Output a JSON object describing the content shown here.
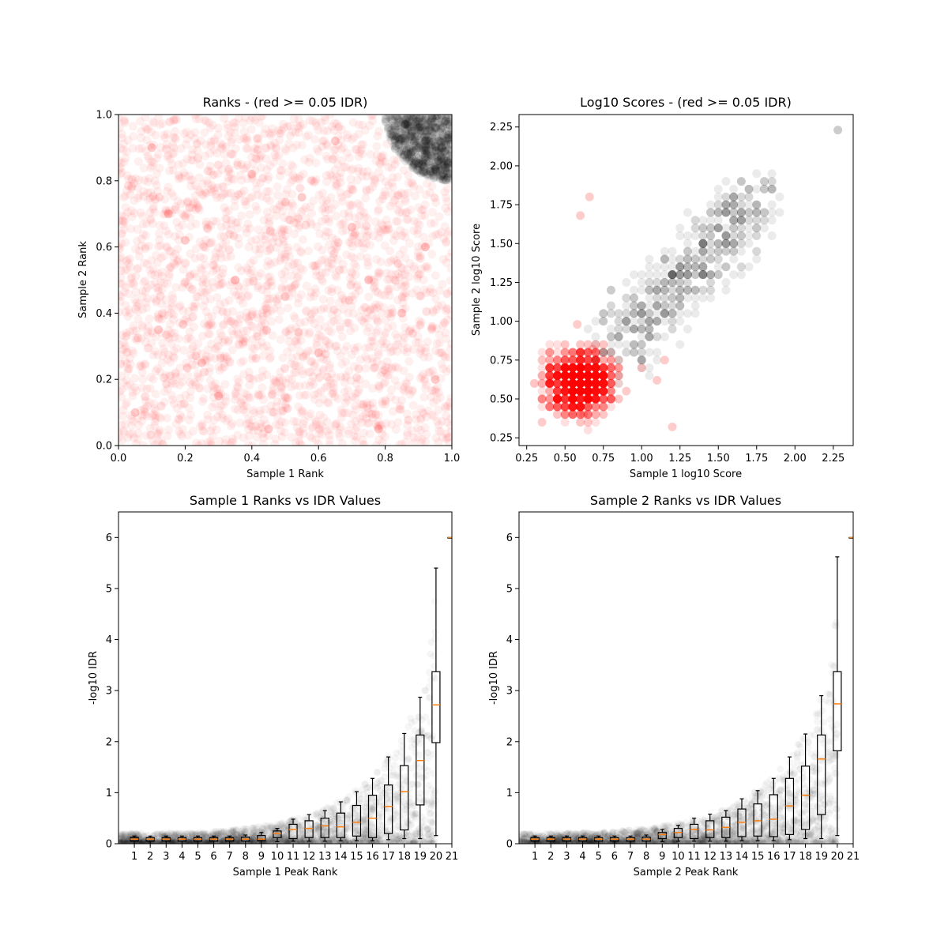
{
  "figure": {
    "background": "#ffffff"
  },
  "chart_data": [
    {
      "id": "ranks",
      "type": "scatter",
      "title": "Ranks - (red >= 0.05 IDR)",
      "xlabel": "Sample 1 Rank",
      "ylabel": "Sample 2 Rank",
      "xlim": [
        0,
        1
      ],
      "ylim": [
        0,
        1
      ],
      "xticks": [
        0.0,
        0.2,
        0.4,
        0.6,
        0.8,
        1.0
      ],
      "yticks": [
        0.0,
        0.2,
        0.4,
        0.6,
        0.8,
        1.0
      ],
      "tick_format": "1",
      "grid": false,
      "colors": {
        "pass": "#000000",
        "fail": "#ff0000"
      },
      "series": [
        {
          "color": "#ff0000",
          "density": "uniform over [0,1]x[0,1] excluding the high-rank corner",
          "points": [
            [
              0.05,
              0.1
            ],
            [
              0.12,
              0.35
            ],
            [
              0.2,
              0.62
            ],
            [
              0.3,
              0.15
            ],
            [
              0.4,
              0.82
            ],
            [
              0.5,
              0.45
            ],
            [
              0.6,
              0.28
            ],
            [
              0.7,
              0.66
            ],
            [
              0.78,
              0.05
            ],
            [
              0.85,
              0.4
            ],
            [
              0.92,
              0.6
            ],
            [
              0.1,
              0.9
            ],
            [
              0.35,
              0.5
            ],
            [
              0.55,
              0.75
            ],
            [
              0.65,
              0.92
            ],
            [
              0.25,
              0.25
            ],
            [
              0.45,
              0.05
            ],
            [
              0.75,
              0.5
            ],
            [
              0.95,
              0.2
            ],
            [
              0.15,
              0.7
            ]
          ]
        },
        {
          "color": "#000000",
          "density": "dense cluster in the corner where both ranks exceed about 0.82",
          "points": [
            [
              0.92,
              0.92
            ],
            [
              0.95,
              0.96
            ],
            [
              0.98,
              0.98
            ],
            [
              0.88,
              0.95
            ],
            [
              0.96,
              0.86
            ],
            [
              0.9,
              0.9
            ],
            [
              0.99,
              0.93
            ],
            [
              0.94,
              0.99
            ],
            [
              0.86,
              0.97
            ],
            [
              0.97,
              0.9
            ],
            [
              0.91,
              0.85
            ],
            [
              0.84,
              0.93
            ]
          ]
        }
      ]
    },
    {
      "id": "scores",
      "type": "scatter",
      "title": "Log10 Scores - (red >= 0.05 IDR)",
      "xlabel": "Sample 1 log10 Score",
      "ylabel": "Sample 2 log10 Score",
      "xlim": [
        0.2,
        2.38
      ],
      "ylim": [
        0.2,
        2.33
      ],
      "xticks": [
        0.25,
        0.5,
        0.75,
        1.0,
        1.25,
        1.5,
        1.75,
        2.0,
        2.25
      ],
      "yticks": [
        0.25,
        0.5,
        0.75,
        1.0,
        1.25,
        1.5,
        1.75,
        2.0,
        2.25
      ],
      "tick_format": "2",
      "grid": false,
      "colors": {
        "pass": "#000000",
        "fail": "#ff0000"
      },
      "series": [
        {
          "color": "#ff0000",
          "density": "dense block roughly x 0.4-0.8, y 0.35-0.8, thinning toward 1.1",
          "points": [
            [
              0.5,
              0.55
            ],
            [
              0.6,
              0.6
            ],
            [
              0.65,
              0.52
            ],
            [
              0.55,
              0.7
            ],
            [
              0.7,
              0.58
            ],
            [
              0.45,
              0.45
            ],
            [
              0.75,
              0.65
            ],
            [
              0.4,
              0.62
            ],
            [
              0.62,
              0.4
            ],
            [
              0.8,
              0.75
            ],
            [
              0.9,
              0.55
            ],
            [
              1.0,
              0.7
            ],
            [
              0.35,
              0.35
            ],
            [
              0.68,
              0.82
            ],
            [
              1.1,
              0.62
            ],
            [
              0.58,
              0.98
            ],
            [
              0.66,
              1.8
            ],
            [
              0.6,
              1.68
            ],
            [
              1.2,
              0.32
            ],
            [
              1.15,
              0.75
            ]
          ]
        },
        {
          "color": "#000000",
          "density": "grey band from about (0.75,0.75) up to (1.8,1.9) with an outlier near (2.28,2.23)",
          "points": [
            [
              0.85,
              0.9
            ],
            [
              0.9,
              1.0
            ],
            [
              1.0,
              1.1
            ],
            [
              0.95,
              0.85
            ],
            [
              1.05,
              1.2
            ],
            [
              1.1,
              1.0
            ],
            [
              1.2,
              1.3
            ],
            [
              1.3,
              1.4
            ],
            [
              1.4,
              1.5
            ],
            [
              1.5,
              1.6
            ],
            [
              1.6,
              1.75
            ],
            [
              1.7,
              1.85
            ],
            [
              1.8,
              1.9
            ],
            [
              1.25,
              1.1
            ],
            [
              0.8,
              1.2
            ],
            [
              1.35,
              1.2
            ],
            [
              1.55,
              1.45
            ],
            [
              1.45,
              1.3
            ],
            [
              1.65,
              1.65
            ],
            [
              2.28,
              2.23
            ]
          ]
        }
      ]
    },
    {
      "id": "s1_idr",
      "type": "box",
      "title": "Sample 1 Ranks vs IDR Values",
      "xlabel": "Sample 1 Peak Rank",
      "ylabel": "-log10 IDR",
      "xlim": [
        0.0,
        21.0
      ],
      "ylim": [
        0,
        6.5
      ],
      "xticks": [
        1,
        2,
        3,
        4,
        5,
        6,
        7,
        8,
        9,
        10,
        11,
        12,
        13,
        14,
        15,
        16,
        17,
        18,
        19,
        20,
        21
      ],
      "yticks": [
        0,
        1,
        2,
        3,
        4,
        5,
        6
      ],
      "tick_format": "0",
      "grid": false,
      "colors": {
        "box": "#000000",
        "median": "#ff7f0e",
        "scatter": "#000000"
      },
      "scatter_envelope": [
        [
          0.0,
          0.2
        ],
        [
          5,
          0.22
        ],
        [
          8,
          0.3
        ],
        [
          10,
          0.4
        ],
        [
          12,
          0.55
        ],
        [
          14,
          0.85
        ],
        [
          16,
          1.3
        ],
        [
          17,
          1.7
        ],
        [
          18,
          2.2
        ],
        [
          19,
          2.9
        ],
        [
          19.5,
          3.6
        ],
        [
          20,
          5.0
        ],
        [
          20,
          6.0
        ]
      ],
      "boxes": [
        {
          "x": 1,
          "q1": 0.05,
          "median": 0.09,
          "q3": 0.12,
          "low": 0.0,
          "high": 0.15
        },
        {
          "x": 2,
          "q1": 0.05,
          "median": 0.09,
          "q3": 0.12,
          "low": 0.0,
          "high": 0.15
        },
        {
          "x": 3,
          "q1": 0.05,
          "median": 0.09,
          "q3": 0.12,
          "low": 0.0,
          "high": 0.15
        },
        {
          "x": 4,
          "q1": 0.05,
          "median": 0.09,
          "q3": 0.12,
          "low": 0.0,
          "high": 0.15
        },
        {
          "x": 5,
          "q1": 0.05,
          "median": 0.09,
          "q3": 0.12,
          "low": 0.0,
          "high": 0.15
        },
        {
          "x": 6,
          "q1": 0.05,
          "median": 0.09,
          "q3": 0.12,
          "low": 0.0,
          "high": 0.15
        },
        {
          "x": 7,
          "q1": 0.05,
          "median": 0.09,
          "q3": 0.12,
          "low": 0.0,
          "high": 0.15
        },
        {
          "x": 8,
          "q1": 0.05,
          "median": 0.09,
          "q3": 0.13,
          "low": 0.0,
          "high": 0.17
        },
        {
          "x": 9,
          "q1": 0.06,
          "median": 0.09,
          "q3": 0.16,
          "low": 0.0,
          "high": 0.22
        },
        {
          "x": 10,
          "q1": 0.12,
          "median": 0.2,
          "q3": 0.25,
          "low": 0.04,
          "high": 0.3
        },
        {
          "x": 11,
          "q1": 0.1,
          "median": 0.28,
          "q3": 0.38,
          "low": 0.05,
          "high": 0.48
        },
        {
          "x": 12,
          "q1": 0.12,
          "median": 0.3,
          "q3": 0.45,
          "low": 0.05,
          "high": 0.57
        },
        {
          "x": 13,
          "q1": 0.12,
          "median": 0.35,
          "q3": 0.5,
          "low": 0.05,
          "high": 0.65
        },
        {
          "x": 14,
          "q1": 0.12,
          "median": 0.33,
          "q3": 0.6,
          "low": 0.06,
          "high": 0.82
        },
        {
          "x": 15,
          "q1": 0.15,
          "median": 0.42,
          "q3": 0.75,
          "low": 0.06,
          "high": 1.02
        },
        {
          "x": 16,
          "q1": 0.12,
          "median": 0.5,
          "q3": 0.95,
          "low": 0.06,
          "high": 1.28
        },
        {
          "x": 17,
          "q1": 0.2,
          "median": 0.73,
          "q3": 1.15,
          "low": 0.08,
          "high": 1.7
        },
        {
          "x": 18,
          "q1": 0.27,
          "median": 1.02,
          "q3": 1.53,
          "low": 0.1,
          "high": 2.16
        },
        {
          "x": 19,
          "q1": 0.76,
          "median": 1.63,
          "q3": 2.13,
          "low": 0.1,
          "high": 2.87
        },
        {
          "x": 20,
          "q1": 1.98,
          "median": 2.72,
          "q3": 3.37,
          "low": 0.16,
          "high": 5.4
        },
        {
          "x": 21,
          "q1": 6.0,
          "median": 6.0,
          "q3": 6.0,
          "low": 6.0,
          "high": 6.0
        }
      ]
    },
    {
      "id": "s2_idr",
      "type": "box",
      "title": "Sample 2 Ranks vs IDR Values",
      "xlabel": "Sample 2 Peak Rank",
      "ylabel": "-log10 IDR",
      "xlim": [
        0.0,
        21.0
      ],
      "ylim": [
        0,
        6.5
      ],
      "xticks": [
        1,
        2,
        3,
        4,
        5,
        6,
        7,
        8,
        9,
        10,
        11,
        12,
        13,
        14,
        15,
        16,
        17,
        18,
        19,
        20,
        21
      ],
      "yticks": [
        0,
        1,
        2,
        3,
        4,
        5,
        6
      ],
      "tick_format": "0",
      "grid": false,
      "colors": {
        "box": "#000000",
        "median": "#ff7f0e",
        "scatter": "#000000"
      },
      "scatter_envelope": [
        [
          0.0,
          0.2
        ],
        [
          5,
          0.22
        ],
        [
          8,
          0.3
        ],
        [
          10,
          0.4
        ],
        [
          12,
          0.55
        ],
        [
          14,
          0.85
        ],
        [
          16,
          1.3
        ],
        [
          17,
          1.7
        ],
        [
          18,
          2.2
        ],
        [
          19,
          2.9
        ],
        [
          19.5,
          3.6
        ],
        [
          20,
          5.0
        ],
        [
          20,
          6.0
        ]
      ],
      "boxes": [
        {
          "x": 1,
          "q1": 0.05,
          "median": 0.09,
          "q3": 0.12,
          "low": 0.0,
          "high": 0.15
        },
        {
          "x": 2,
          "q1": 0.05,
          "median": 0.09,
          "q3": 0.12,
          "low": 0.0,
          "high": 0.15
        },
        {
          "x": 3,
          "q1": 0.05,
          "median": 0.09,
          "q3": 0.12,
          "low": 0.0,
          "high": 0.15
        },
        {
          "x": 4,
          "q1": 0.05,
          "median": 0.09,
          "q3": 0.12,
          "low": 0.0,
          "high": 0.15
        },
        {
          "x": 5,
          "q1": 0.05,
          "median": 0.09,
          "q3": 0.12,
          "low": 0.0,
          "high": 0.15
        },
        {
          "x": 6,
          "q1": 0.05,
          "median": 0.09,
          "q3": 0.12,
          "low": 0.0,
          "high": 0.15
        },
        {
          "x": 7,
          "q1": 0.05,
          "median": 0.09,
          "q3": 0.12,
          "low": 0.0,
          "high": 0.15
        },
        {
          "x": 8,
          "q1": 0.05,
          "median": 0.09,
          "q3": 0.13,
          "low": 0.0,
          "high": 0.17
        },
        {
          "x": 9,
          "q1": 0.1,
          "median": 0.18,
          "q3": 0.22,
          "low": 0.04,
          "high": 0.28
        },
        {
          "x": 10,
          "q1": 0.12,
          "median": 0.22,
          "q3": 0.3,
          "low": 0.05,
          "high": 0.36
        },
        {
          "x": 11,
          "q1": 0.1,
          "median": 0.28,
          "q3": 0.38,
          "low": 0.05,
          "high": 0.5
        },
        {
          "x": 12,
          "q1": 0.12,
          "median": 0.27,
          "q3": 0.45,
          "low": 0.05,
          "high": 0.58
        },
        {
          "x": 13,
          "q1": 0.12,
          "median": 0.32,
          "q3": 0.52,
          "low": 0.05,
          "high": 0.65
        },
        {
          "x": 14,
          "q1": 0.14,
          "median": 0.42,
          "q3": 0.68,
          "low": 0.06,
          "high": 0.88
        },
        {
          "x": 15,
          "q1": 0.15,
          "median": 0.45,
          "q3": 0.78,
          "low": 0.06,
          "high": 1.04
        },
        {
          "x": 16,
          "q1": 0.14,
          "median": 0.48,
          "q3": 0.96,
          "low": 0.06,
          "high": 1.28
        },
        {
          "x": 17,
          "q1": 0.18,
          "median": 0.74,
          "q3": 1.28,
          "low": 0.08,
          "high": 1.7
        },
        {
          "x": 18,
          "q1": 0.28,
          "median": 0.95,
          "q3": 1.52,
          "low": 0.1,
          "high": 2.15
        },
        {
          "x": 19,
          "q1": 0.57,
          "median": 1.66,
          "q3": 2.13,
          "low": 0.1,
          "high": 2.9
        },
        {
          "x": 20,
          "q1": 1.82,
          "median": 2.74,
          "q3": 3.37,
          "low": 0.16,
          "high": 5.62
        },
        {
          "x": 21,
          "q1": 6.0,
          "median": 6.0,
          "q3": 6.0,
          "low": 6.0,
          "high": 6.0
        }
      ]
    }
  ]
}
